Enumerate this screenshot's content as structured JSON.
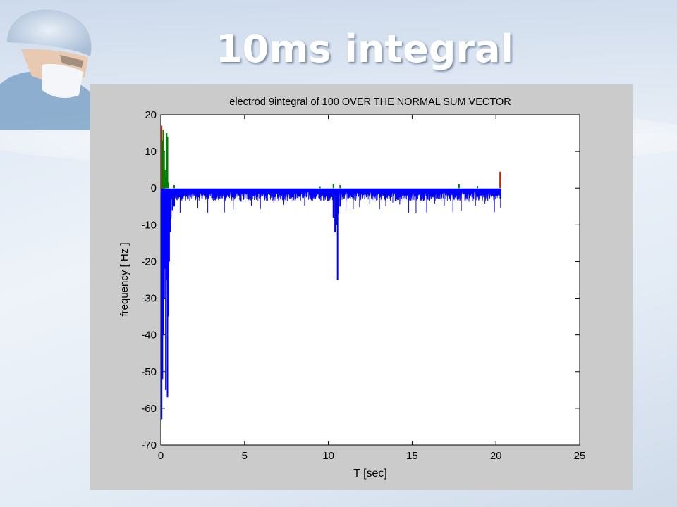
{
  "slide": {
    "title": "10ms integral"
  },
  "chart_data": {
    "type": "line",
    "title": "electrod 9integral of 100 OVER THE NORMAL SUM VECTOR",
    "xlabel": "T [sec]",
    "ylabel": "frequency [ Hz ]",
    "xlim": [
      0,
      25
    ],
    "ylim": [
      -70,
      20
    ],
    "xticks": [
      0,
      5,
      10,
      15,
      20,
      25
    ],
    "yticks": [
      20,
      10,
      0,
      -10,
      -20,
      -30,
      -40,
      -50,
      -60,
      -70
    ],
    "grid": false,
    "series": [
      {
        "color": "#cc2200",
        "points": [
          [
            0.05,
            17
          ],
          [
            0.08,
            12
          ],
          [
            0.12,
            5
          ],
          [
            0.15,
            0.3
          ],
          [
            20.25,
            4.5
          ]
        ]
      },
      {
        "color": "#008000",
        "points": [
          [
            0.1,
            13
          ],
          [
            0.15,
            16
          ],
          [
            0.2,
            10
          ],
          [
            0.25,
            5
          ],
          [
            0.3,
            3
          ],
          [
            0.35,
            15
          ],
          [
            0.4,
            14
          ],
          [
            0.45,
            1.5
          ],
          [
            0.8,
            0.8
          ],
          [
            9.5,
            0.5
          ],
          [
            10.3,
            1.2
          ],
          [
            10.7,
            0.8
          ],
          [
            17.8,
            1.0
          ],
          [
            18.9,
            0.6
          ]
        ]
      },
      {
        "color": "#0000ff",
        "baseline": -0.3,
        "range": [
          0,
          20.3
        ],
        "noise_min": -3.5,
        "noise_max": -1.0,
        "spikes": [
          [
            0.05,
            -63
          ],
          [
            0.1,
            -52
          ],
          [
            0.15,
            -40
          ],
          [
            0.2,
            -30
          ],
          [
            0.25,
            -22
          ],
          [
            0.3,
            -55
          ],
          [
            0.35,
            -25
          ],
          [
            0.4,
            -57
          ],
          [
            0.45,
            -35
          ],
          [
            0.5,
            -20
          ],
          [
            0.55,
            -12
          ],
          [
            0.6,
            -8
          ],
          [
            0.7,
            -6
          ],
          [
            0.8,
            -5
          ],
          [
            10.3,
            -8
          ],
          [
            10.4,
            -12
          ],
          [
            10.5,
            -10
          ],
          [
            10.55,
            -25
          ],
          [
            10.6,
            -7
          ],
          [
            10.7,
            -5
          ]
        ]
      }
    ]
  }
}
